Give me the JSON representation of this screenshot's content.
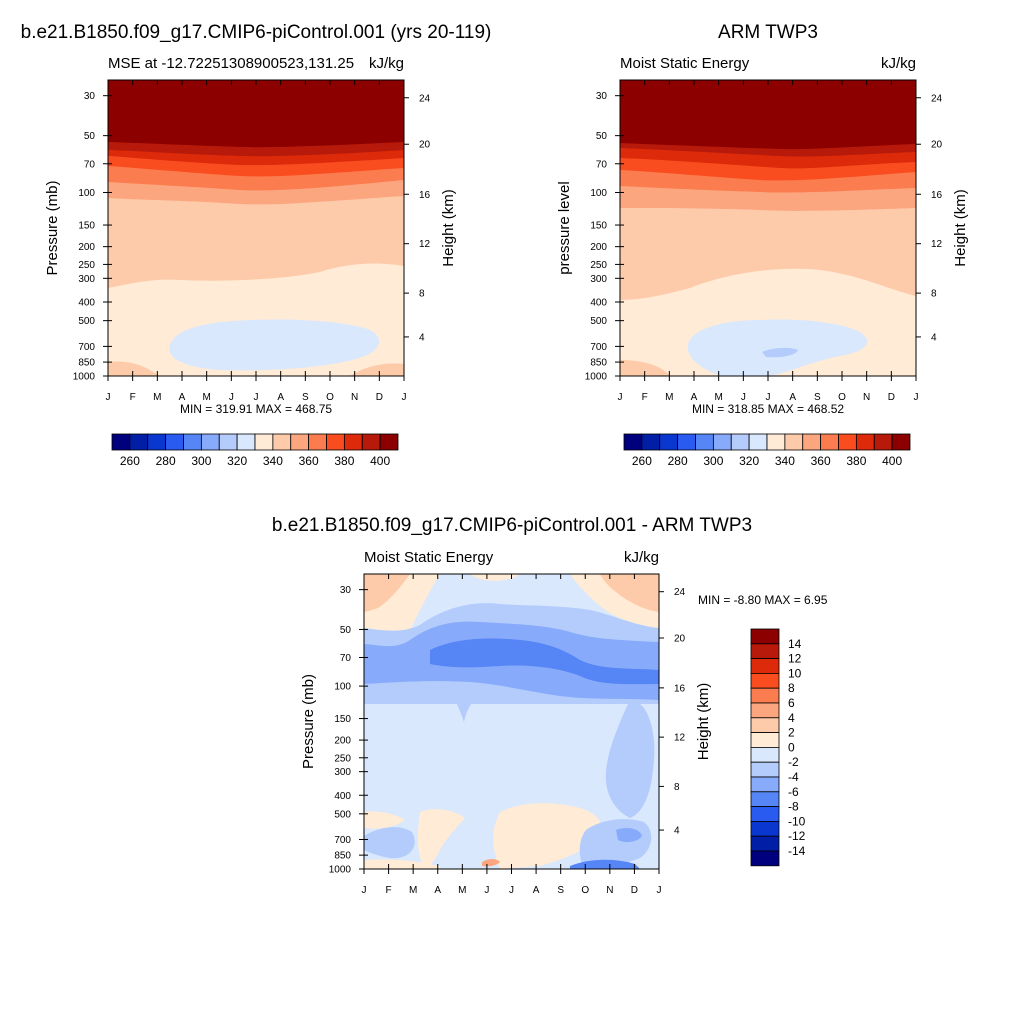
{
  "months": [
    "J",
    "F",
    "M",
    "A",
    "M",
    "J",
    "J",
    "A",
    "S",
    "O",
    "N",
    "D",
    "J"
  ],
  "pressure_ticks": [
    "30",
    "50",
    "70",
    "100",
    "150",
    "200",
    "250",
    "300",
    "400",
    "500",
    "700",
    "850",
    "1000"
  ],
  "height_ticks": [
    "24",
    "20",
    "16",
    "12",
    "8",
    "4"
  ],
  "palette": {
    "colors": [
      "#00007f",
      "#001fa6",
      "#0b37d1",
      "#2a5bf0",
      "#5685f5",
      "#87aafa",
      "#b3ccfc",
      "#d9e8fd",
      "#ffebd6",
      "#fdcbaa",
      "#fca680",
      "#fb7c4f",
      "#f94d1f",
      "#dd2a0b",
      "#b71a0a",
      "#8c0000"
    ]
  },
  "chart_data": [
    {
      "type": "heatmap",
      "title": "b.e21.B1850.f09_g17.CMIP6-piControl.001 (yrs 20-119)",
      "subtitle_left": "MSE at -12.72251308900523,131.25",
      "subtitle_right": "kJ/kg",
      "ylabel": "Pressure (mb)",
      "ylabel_right": "Height (km)",
      "xlabel": "",
      "minmax": "MIN = 319.91 MAX = 468.75",
      "colorbar_labels": [
        "260",
        "280",
        "300",
        "320",
        "340",
        "360",
        "380",
        "400"
      ],
      "colorbar_levels": [
        260,
        270,
        280,
        290,
        300,
        310,
        320,
        330,
        340,
        350,
        360,
        370,
        380,
        390,
        400
      ],
      "bands_top_to_bottom": [
        {
          "level": 400,
          "color": "#8c0000"
        },
        {
          "level": 390,
          "color": "#b71a0a"
        },
        {
          "level": 380,
          "color": "#dd2a0b"
        },
        {
          "level": 370,
          "color": "#f94d1f"
        },
        {
          "level": 360,
          "color": "#fb7c4f"
        },
        {
          "level": 350,
          "color": "#fca680"
        },
        {
          "level": 340,
          "color": "#fdcbaa"
        },
        {
          "level": 330,
          "color": "#ffebd6"
        },
        {
          "level": 320,
          "color": "#d9e8fd"
        }
      ]
    },
    {
      "type": "heatmap",
      "title": "ARM TWP3",
      "subtitle_left": "Moist Static Energy",
      "subtitle_right": "kJ/kg",
      "ylabel": "pressure level",
      "ylabel_right": "Height (km)",
      "xlabel": "",
      "minmax": "MIN = 318.85 MAX = 468.52",
      "colorbar_labels": [
        "260",
        "280",
        "300",
        "320",
        "340",
        "360",
        "380",
        "400"
      ],
      "colorbar_levels": [
        260,
        270,
        280,
        290,
        300,
        310,
        320,
        330,
        340,
        350,
        360,
        370,
        380,
        390,
        400
      ],
      "bands_top_to_bottom": [
        {
          "level": 400,
          "color": "#8c0000"
        },
        {
          "level": 390,
          "color": "#b71a0a"
        },
        {
          "level": 380,
          "color": "#dd2a0b"
        },
        {
          "level": 370,
          "color": "#f94d1f"
        },
        {
          "level": 360,
          "color": "#fb7c4f"
        },
        {
          "level": 350,
          "color": "#fca680"
        },
        {
          "level": 340,
          "color": "#fdcbaa"
        },
        {
          "level": 330,
          "color": "#ffebd6"
        },
        {
          "level": 320,
          "color": "#d9e8fd"
        }
      ]
    },
    {
      "type": "heatmap",
      "title": "b.e21.B1850.f09_g17.CMIP6-piControl.001 - ARM TWP3",
      "subtitle_left": "Moist Static Energy",
      "subtitle_right": "kJ/kg",
      "ylabel": "Pressure (mb)",
      "ylabel_right": "Height (km)",
      "xlabel": "",
      "minmax": "MIN =  -8.80 MAX =   6.95",
      "colorbar_labels": [
        "14",
        "12",
        "10",
        "8",
        "6",
        "4",
        "2",
        "0",
        "-2",
        "-4",
        "-6",
        "-8",
        "-10",
        "-12",
        "-14"
      ],
      "colorbar_levels": [
        -14,
        -12,
        -10,
        -8,
        -6,
        -4,
        -2,
        0,
        2,
        4,
        6,
        8,
        10,
        12,
        14
      ],
      "dominant_value_range": [
        -4,
        2
      ]
    }
  ]
}
